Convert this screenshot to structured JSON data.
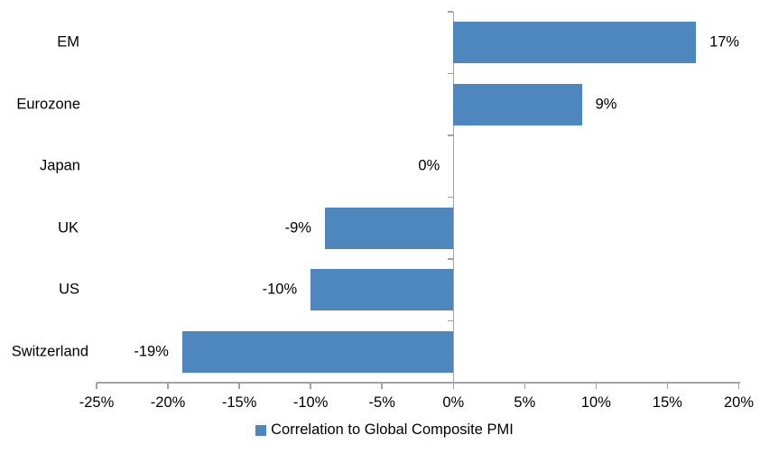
{
  "chart_data": {
    "type": "bar",
    "orientation": "horizontal",
    "title": "",
    "xlabel": "",
    "ylabel": "",
    "categories": [
      "EM",
      "Eurozone",
      "Japan",
      "UK",
      "US",
      "Switzerland"
    ],
    "values": [
      17,
      9,
      0,
      -9,
      -10,
      -19
    ],
    "value_unit": "%",
    "data_labels": [
      "17%",
      "9%",
      "0%",
      "-9%",
      "-10%",
      "-19%"
    ],
    "series_name": "Correlation to Global Composite PMI",
    "xlim": [
      -25,
      20
    ],
    "x_tick_step": 5,
    "x_tick_labels": [
      "-25%",
      "-20%",
      "-15%",
      "-10%",
      "-5%",
      "0%",
      "5%",
      "10%",
      "15%",
      "20%"
    ],
    "grid": false,
    "legend_position": "bottom-center",
    "colors": {
      "bar": "#4E86BE",
      "axis": "#A3A3A3",
      "text": "#000000",
      "background": "#FFFFFF"
    }
  }
}
